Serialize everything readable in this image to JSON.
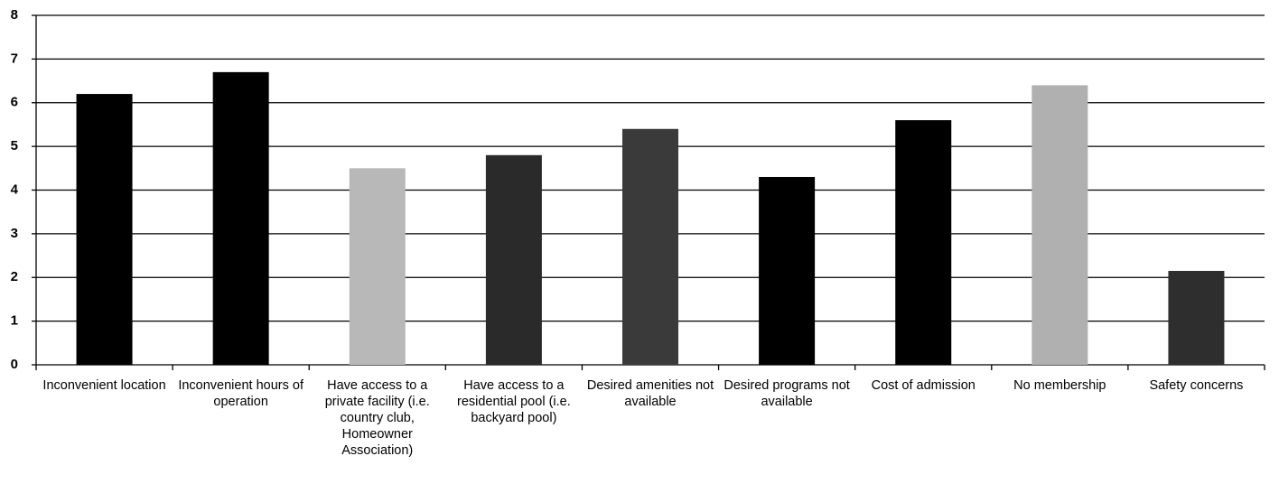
{
  "chart_data": {
    "type": "bar",
    "categories": [
      "Inconvenient location",
      "Inconvenient hours of operation",
      "Have access to a private facility (i.e. country club, Homeowner Association)",
      "Have access to a residential pool (i.e. backyard pool)",
      "Desired amenities not available",
      "Desired programs not available",
      "Cost of admission",
      "No membership",
      "Safety concerns"
    ],
    "values": [
      6.2,
      6.7,
      4.5,
      4.8,
      5.4,
      4.3,
      5.6,
      6.4,
      2.15
    ],
    "colors": [
      "#000000",
      "#000000",
      "#b8b8b8",
      "#2a2a2a",
      "#3a3a3a",
      "#000000",
      "#000000",
      "#b0b0b0",
      "#2e2e2e"
    ],
    "ylim": [
      0,
      8
    ],
    "yticks": [
      0,
      1,
      2,
      3,
      4,
      5,
      6,
      7,
      8
    ],
    "grid": true
  }
}
